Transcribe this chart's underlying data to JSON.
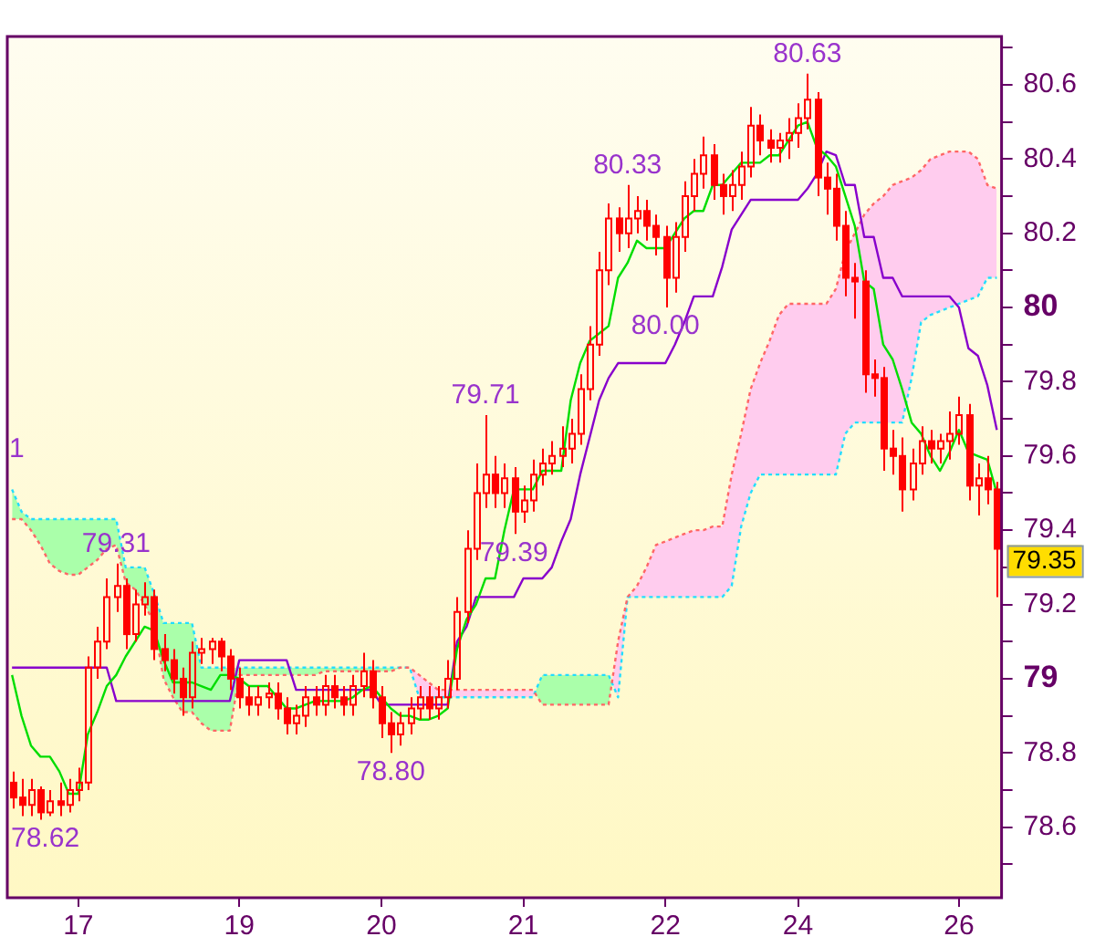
{
  "chart_data": {
    "type": "candlestick",
    "categories": [
      null,
      null,
      null,
      null,
      null,
      null,
      null,
      "17",
      null,
      null,
      null,
      null,
      null,
      null,
      null,
      null,
      null,
      null,
      null,
      null,
      null,
      null,
      null,
      null,
      "19",
      null,
      null,
      null,
      null,
      null,
      null,
      null,
      null,
      null,
      null,
      null,
      null,
      null,
      null,
      "20",
      null,
      null,
      null,
      null,
      null,
      null,
      null,
      null,
      null,
      null,
      null,
      null,
      null,
      null,
      "21",
      null,
      null,
      null,
      null,
      null,
      null,
      null,
      null,
      null,
      null,
      null,
      null,
      null,
      null,
      "22",
      null,
      null,
      null,
      null,
      null,
      null,
      null,
      null,
      null,
      null,
      null,
      null,
      null,
      "24",
      null,
      null,
      null,
      null,
      null,
      null,
      null,
      null,
      null,
      null,
      null,
      null,
      null,
      null,
      null,
      null,
      "26",
      null,
      null,
      null,
      null
    ],
    "series": [
      {
        "color": "#ff0000",
        "ohlc": [
          [
            78.72,
            78.75,
            78.65,
            78.68
          ],
          [
            78.68,
            78.73,
            78.63,
            78.66
          ],
          [
            78.66,
            78.73,
            78.63,
            78.7
          ],
          [
            78.7,
            78.71,
            78.62,
            78.64
          ],
          [
            78.64,
            78.7,
            78.63,
            78.67
          ],
          [
            78.67,
            78.72,
            78.63,
            78.66
          ],
          [
            78.66,
            78.73,
            78.64,
            78.7
          ],
          [
            78.7,
            78.76,
            78.67,
            78.72
          ],
          [
            78.72,
            79.06,
            78.7,
            79.03
          ],
          [
            79.03,
            79.14,
            79.0,
            79.1
          ],
          [
            79.1,
            79.27,
            79.08,
            79.22
          ],
          [
            79.22,
            79.31,
            79.18,
            79.25
          ],
          [
            79.25,
            79.27,
            79.08,
            79.12
          ],
          [
            79.12,
            79.24,
            79.1,
            79.2
          ],
          [
            79.2,
            79.26,
            79.17,
            79.22
          ],
          [
            79.22,
            79.24,
            79.05,
            79.08
          ],
          [
            79.08,
            79.12,
            79.02,
            79.05
          ],
          [
            79.05,
            79.08,
            78.96,
            79.0
          ],
          [
            79.0,
            79.03,
            78.9,
            78.95
          ],
          [
            78.95,
            79.1,
            78.92,
            79.07
          ],
          [
            79.07,
            79.11,
            79.04,
            79.08
          ],
          [
            79.08,
            79.11,
            79.04,
            79.1
          ],
          [
            79.1,
            79.11,
            79.02,
            79.06
          ],
          [
            79.06,
            79.08,
            78.97,
            79.0
          ],
          [
            79.0,
            79.03,
            78.92,
            78.95
          ],
          [
            78.95,
            78.98,
            78.9,
            78.93
          ],
          [
            78.93,
            78.98,
            78.9,
            78.95
          ],
          [
            78.95,
            78.99,
            78.92,
            78.96
          ],
          [
            78.96,
            78.99,
            78.89,
            78.92
          ],
          [
            78.92,
            78.95,
            78.85,
            78.88
          ],
          [
            78.88,
            78.93,
            78.85,
            78.9
          ],
          [
            78.9,
            78.98,
            78.87,
            78.95
          ],
          [
            78.95,
            78.98,
            78.9,
            78.93
          ],
          [
            78.93,
            79.01,
            78.9,
            78.98
          ],
          [
            78.98,
            79.01,
            78.92,
            78.95
          ],
          [
            78.95,
            78.98,
            78.9,
            78.93
          ],
          [
            78.93,
            79.01,
            78.9,
            78.98
          ],
          [
            78.98,
            79.07,
            78.95,
            79.02
          ],
          [
            79.02,
            79.05,
            78.92,
            78.95
          ],
          [
            78.95,
            78.98,
            78.84,
            78.88
          ],
          [
            78.88,
            78.91,
            78.8,
            78.85
          ],
          [
            78.85,
            78.91,
            78.82,
            78.88
          ],
          [
            78.88,
            78.95,
            78.85,
            78.92
          ],
          [
            78.92,
            78.98,
            78.89,
            78.95
          ],
          [
            78.95,
            78.98,
            78.89,
            78.92
          ],
          [
            78.92,
            78.98,
            78.89,
            78.95
          ],
          [
            78.95,
            79.05,
            78.92,
            79.0
          ],
          [
            79.0,
            79.22,
            78.97,
            79.18
          ],
          [
            79.18,
            79.4,
            79.15,
            79.35
          ],
          [
            79.35,
            79.58,
            79.32,
            79.5
          ],
          [
            79.5,
            79.71,
            79.46,
            79.55
          ],
          [
            79.55,
            79.6,
            79.46,
            79.5
          ],
          [
            79.5,
            79.58,
            79.46,
            79.54
          ],
          [
            79.54,
            79.57,
            79.39,
            79.45
          ],
          [
            79.45,
            79.52,
            79.42,
            79.48
          ],
          [
            79.48,
            79.59,
            79.45,
            79.55
          ],
          [
            79.55,
            79.62,
            79.52,
            79.58
          ],
          [
            79.58,
            79.64,
            79.55,
            79.6
          ],
          [
            79.6,
            79.68,
            79.57,
            79.62
          ],
          [
            79.62,
            79.7,
            79.58,
            79.66
          ],
          [
            79.66,
            79.82,
            79.63,
            79.78
          ],
          [
            79.78,
            79.95,
            79.75,
            79.9
          ],
          [
            79.9,
            80.15,
            79.87,
            80.1
          ],
          [
            80.1,
            80.28,
            80.06,
            80.24
          ],
          [
            80.24,
            80.27,
            80.15,
            80.2
          ],
          [
            80.2,
            80.33,
            80.16,
            80.24
          ],
          [
            80.24,
            80.3,
            80.2,
            80.26
          ],
          [
            80.26,
            80.29,
            80.18,
            80.22
          ],
          [
            80.22,
            80.25,
            80.14,
            80.19
          ],
          [
            80.19,
            80.22,
            80.0,
            80.08
          ],
          [
            80.08,
            80.23,
            80.04,
            80.19
          ],
          [
            80.19,
            80.34,
            80.15,
            80.3
          ],
          [
            80.3,
            80.4,
            80.26,
            80.36
          ],
          [
            80.36,
            80.46,
            80.32,
            80.41
          ],
          [
            80.41,
            80.44,
            80.29,
            80.33
          ],
          [
            80.33,
            80.36,
            80.25,
            80.3
          ],
          [
            80.3,
            80.37,
            80.26,
            80.33
          ],
          [
            80.33,
            80.42,
            80.29,
            80.38
          ],
          [
            80.38,
            80.54,
            80.35,
            80.49
          ],
          [
            80.49,
            80.52,
            80.41,
            80.45
          ],
          [
            80.45,
            80.48,
            80.39,
            80.43
          ],
          [
            80.43,
            80.47,
            80.39,
            80.45
          ],
          [
            80.45,
            80.51,
            80.4,
            80.47
          ],
          [
            80.47,
            80.55,
            80.43,
            80.51
          ],
          [
            80.51,
            80.63,
            80.48,
            80.56
          ],
          [
            80.56,
            80.58,
            80.3,
            80.35
          ],
          [
            80.35,
            80.39,
            80.25,
            80.32
          ],
          [
            80.32,
            80.36,
            80.18,
            80.22
          ],
          [
            80.22,
            80.26,
            80.03,
            80.08
          ],
          [
            80.08,
            80.12,
            79.97,
            80.07
          ],
          [
            80.07,
            80.1,
            79.77,
            79.82
          ],
          [
            79.82,
            79.86,
            79.76,
            79.81
          ],
          [
            79.81,
            79.84,
            79.56,
            79.62
          ],
          [
            79.62,
            79.67,
            79.55,
            79.6
          ],
          [
            79.6,
            79.65,
            79.45,
            79.51
          ],
          [
            79.51,
            79.62,
            79.48,
            79.58
          ],
          [
            79.58,
            79.68,
            79.55,
            79.64
          ],
          [
            79.64,
            79.67,
            79.58,
            79.62
          ],
          [
            79.62,
            79.66,
            79.58,
            79.64
          ],
          [
            79.64,
            79.72,
            79.59,
            79.66
          ],
          [
            79.66,
            79.76,
            79.63,
            79.71
          ],
          [
            79.71,
            79.74,
            79.48,
            79.52
          ],
          [
            79.52,
            79.58,
            79.44,
            79.54
          ],
          [
            79.54,
            79.6,
            79.47,
            79.51
          ],
          [
            79.51,
            79.53,
            79.22,
            79.35
          ]
        ]
      },
      {
        "type": "line",
        "color": "#00dd00",
        "line_style": "solid",
        "values": [
          79.01,
          78.9,
          78.82,
          78.79,
          78.79,
          78.75,
          78.69,
          78.69,
          78.85,
          78.91,
          78.98,
          79.01,
          79.06,
          79.1,
          79.14,
          79.13,
          79.05,
          78.99,
          78.99,
          78.99,
          78.98,
          78.97,
          79.01,
          79.01,
          79.0,
          78.98,
          78.98,
          78.98,
          78.95,
          78.92,
          78.92,
          78.93,
          78.94,
          78.94,
          78.94,
          78.94,
          78.95,
          78.97,
          78.98,
          78.95,
          78.92,
          78.9,
          78.9,
          78.89,
          78.89,
          78.9,
          78.92,
          79.08,
          79.16,
          79.2,
          79.27,
          79.27,
          79.4,
          79.51,
          79.51,
          79.51,
          79.56,
          79.56,
          79.56,
          79.75,
          79.85,
          79.91,
          79.93,
          79.95,
          80.08,
          80.12,
          80.18,
          80.16,
          80.16,
          80.16,
          80.2,
          80.24,
          80.26,
          80.26,
          80.33,
          80.33,
          80.36,
          80.39,
          80.39,
          80.39,
          80.41,
          80.41,
          80.45,
          80.49,
          80.5,
          80.43,
          80.41,
          80.38,
          80.3,
          80.22,
          80.07,
          80.05,
          79.9,
          79.86,
          79.78,
          79.69,
          79.66,
          79.6,
          79.56,
          79.61,
          79.67,
          79.61,
          79.6,
          79.59,
          79.5
        ]
      },
      {
        "type": "line",
        "color": "#8800cc",
        "line_style": "solid",
        "values": [
          79.03,
          79.03,
          79.03,
          79.03,
          79.03,
          79.03,
          79.03,
          79.03,
          79.03,
          79.03,
          79.03,
          78.94,
          78.94,
          78.94,
          78.94,
          78.94,
          78.94,
          78.94,
          78.94,
          78.94,
          78.94,
          78.94,
          78.94,
          78.94,
          79.05,
          79.05,
          79.05,
          79.05,
          79.05,
          79.05,
          78.97,
          78.97,
          78.97,
          78.97,
          78.97,
          78.97,
          78.97,
          78.97,
          78.97,
          78.93,
          78.93,
          78.93,
          78.93,
          78.93,
          78.93,
          78.93,
          78.93,
          79.1,
          79.14,
          79.22,
          79.22,
          79.22,
          79.22,
          79.22,
          79.27,
          79.27,
          79.27,
          79.3,
          79.37,
          79.43,
          79.55,
          79.65,
          79.75,
          79.81,
          79.85,
          79.85,
          79.85,
          79.85,
          79.85,
          79.85,
          79.9,
          79.96,
          80.03,
          80.03,
          80.03,
          80.11,
          80.21,
          80.25,
          80.29,
          80.29,
          80.29,
          80.29,
          80.29,
          80.29,
          80.32,
          80.36,
          80.42,
          80.41,
          80.33,
          80.33,
          80.19,
          80.19,
          80.08,
          80.08,
          80.03,
          80.03,
          80.03,
          80.03,
          80.03,
          80.03,
          80.0,
          79.89,
          79.87,
          79.79,
          79.67
        ]
      },
      {
        "type": "line",
        "color": "#ff6666",
        "line_style": "dotted",
        "values": [
          79.43,
          79.43,
          79.4,
          79.36,
          79.31,
          79.29,
          79.28,
          79.28,
          79.3,
          79.32,
          79.35,
          79.36,
          79.26,
          79.24,
          79.2,
          79.15,
          79.0,
          78.95,
          78.91,
          78.91,
          78.88,
          78.86,
          78.86,
          78.86,
          79.01,
          79.01,
          79.01,
          79.01,
          79.01,
          79.01,
          79.01,
          79.01,
          79.01,
          79.02,
          79.02,
          79.02,
          79.02,
          79.02,
          79.02,
          79.02,
          79.02,
          79.03,
          79.03,
          79.01,
          78.99,
          78.97,
          78.97,
          78.97,
          78.97,
          78.97,
          78.97,
          78.97,
          78.97,
          78.97,
          78.97,
          78.97,
          78.93,
          78.93,
          78.93,
          78.93,
          78.93,
          78.93,
          78.93,
          78.93,
          79.1,
          79.22,
          79.25,
          79.3,
          79.36,
          79.37,
          79.38,
          79.39,
          79.4,
          79.4,
          79.41,
          79.41,
          79.55,
          79.66,
          79.78,
          79.85,
          79.91,
          79.98,
          80.01,
          80.01,
          80.01,
          80.01,
          80.01,
          80.05,
          80.15,
          80.2,
          80.25,
          80.28,
          80.3,
          80.33,
          80.34,
          80.35,
          80.37,
          80.4,
          80.41,
          80.42,
          80.42,
          80.42,
          80.4,
          80.33,
          80.32
        ]
      },
      {
        "type": "line",
        "color": "#22ddff",
        "line_style": "dotted",
        "values": [
          79.51,
          79.45,
          79.43,
          79.43,
          79.43,
          79.43,
          79.43,
          79.43,
          79.43,
          79.43,
          79.43,
          79.43,
          79.3,
          79.3,
          79.3,
          79.23,
          79.15,
          79.15,
          79.15,
          79.15,
          79.03,
          79.03,
          79.03,
          79.03,
          79.03,
          79.03,
          79.03,
          79.03,
          79.03,
          79.03,
          79.03,
          79.03,
          79.03,
          79.03,
          79.03,
          79.03,
          79.03,
          79.03,
          79.03,
          79.03,
          79.03,
          79.03,
          79.03,
          78.95,
          78.95,
          78.95,
          78.95,
          78.95,
          78.95,
          78.95,
          78.95,
          78.95,
          78.95,
          78.95,
          78.95,
          78.95,
          79.01,
          79.01,
          79.01,
          79.01,
          79.01,
          79.01,
          79.01,
          79.01,
          78.95,
          79.22,
          79.22,
          79.22,
          79.22,
          79.22,
          79.22,
          79.22,
          79.22,
          79.22,
          79.22,
          79.22,
          79.25,
          79.41,
          79.5,
          79.55,
          79.55,
          79.55,
          79.55,
          79.55,
          79.55,
          79.55,
          79.55,
          79.55,
          79.66,
          79.69,
          79.69,
          79.69,
          79.69,
          79.69,
          79.69,
          79.81,
          79.96,
          79.98,
          79.99,
          80.0,
          80.01,
          80.02,
          80.03,
          80.08,
          80.08
        ]
      }
    ],
    "ylim": [
      78.41,
      80.73
    ],
    "yticks": [
      {
        "value": 78.5,
        "label": null
      },
      78.6,
      {
        "value": 78.7,
        "label": null
      },
      78.8,
      {
        "value": 78.9,
        "label": null
      },
      79,
      {
        "value": 79.1,
        "label": null
      },
      79.2,
      {
        "value": 79.3,
        "label": null
      },
      79.4,
      {
        "value": 79.5,
        "label": null
      },
      79.6,
      {
        "value": 79.7,
        "label": null
      },
      79.8,
      {
        "value": 79.9,
        "label": null
      },
      80,
      {
        "value": 80.1,
        "label": null
      },
      80.2,
      {
        "value": 80.3,
        "label": null
      },
      80.4,
      {
        "value": 80.5,
        "label": null
      },
      80.6,
      {
        "value": 80.7,
        "label": null
      }
    ],
    "annotations": [
      "1",
      {
        "text": "79.31",
        "y": 79.31
      },
      {
        "text": "78.62",
        "y": 78.62
      },
      {
        "text": "78.80",
        "y": 78.8
      },
      {
        "text": "79.71",
        "y": 79.71
      },
      {
        "text": "79.39",
        "y": 79.39
      },
      {
        "text": "80.33",
        "y": 80.33
      },
      {
        "text": "80.00",
        "y": 80.0
      },
      {
        "text": "80.63",
        "y": 80.63
      },
      "79.35"
    ],
    "grid": false,
    "legend": false
  }
}
